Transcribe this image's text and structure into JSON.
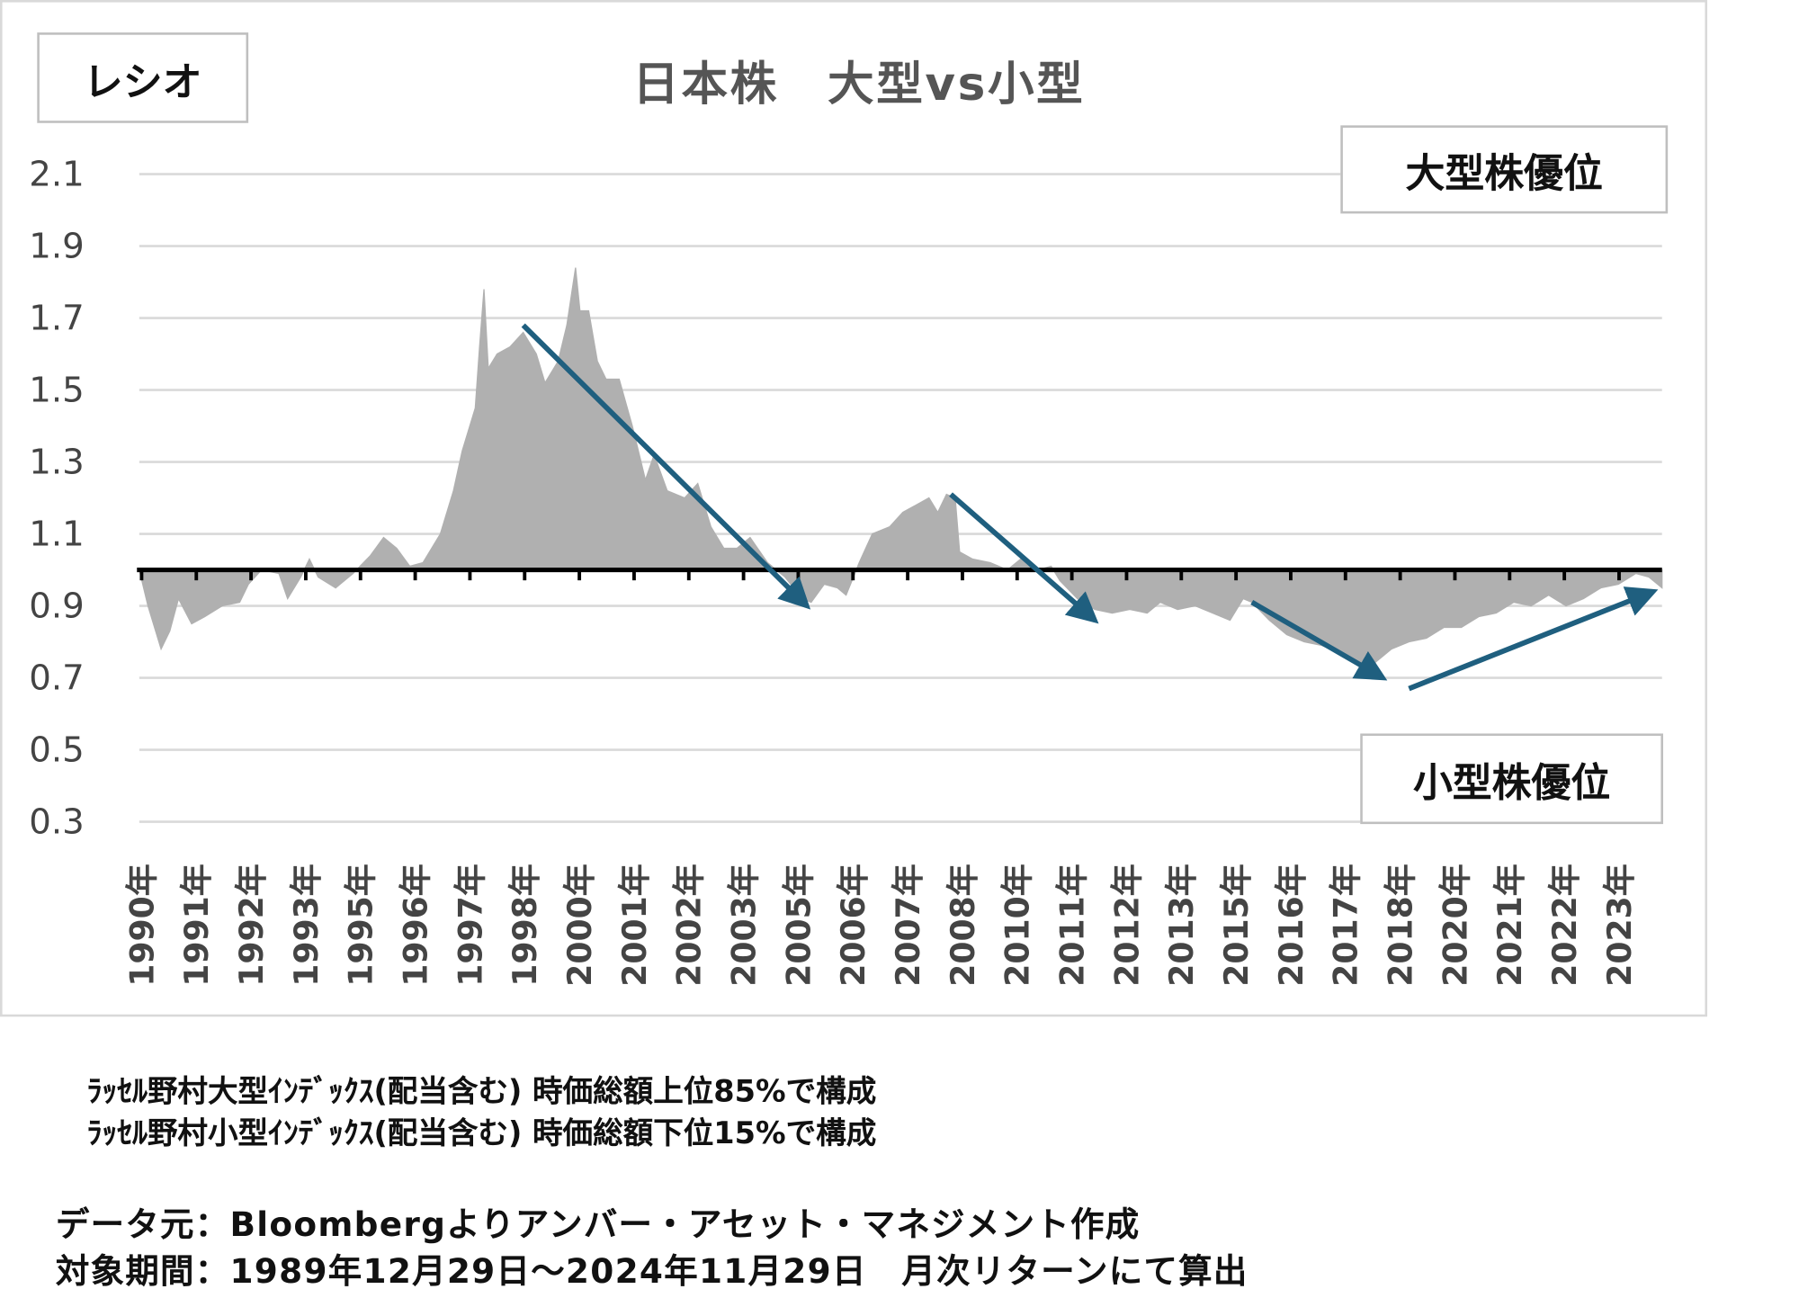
{
  "chart_data": {
    "type": "area",
    "title": "日本株　大型vs小型",
    "ylabel": "レシオ",
    "ylim": [
      0.3,
      2.1
    ],
    "yticks": [
      "2.1",
      "1.9",
      "1.7",
      "1.5",
      "1.3",
      "1.1",
      "0.9",
      "0.7",
      "0.5",
      "0.3"
    ],
    "ytick_values": [
      2.1,
      1.9,
      1.7,
      1.5,
      1.3,
      1.1,
      0.9,
      0.7,
      0.5,
      0.3
    ],
    "baseline": 1.0,
    "xlim": [
      1990.0,
      2024.9
    ],
    "xticks": [
      "1990年",
      "1991年",
      "1992年",
      "1993年",
      "1995年",
      "1996年",
      "1997年",
      "1998年",
      "2000年",
      "2001年",
      "2002年",
      "2003年",
      "2005年",
      "2006年",
      "2007年",
      "2008年",
      "2010年",
      "2011年",
      "2012年",
      "2013年",
      "2015年",
      "2016年",
      "2017年",
      "2018年",
      "2020年",
      "2021年",
      "2022年",
      "2023年"
    ],
    "grid": true,
    "fill_color": "#b0b0b0",
    "arrow_color": "#1f5f7f",
    "x": [
      1990.0,
      1990.2,
      1990.5,
      1990.7,
      1990.9,
      1991.2,
      1991.5,
      1991.9,
      1992.3,
      1992.5,
      1992.8,
      1993.2,
      1993.4,
      1993.7,
      1993.9,
      1994.1,
      1994.5,
      1994.9,
      1995.3,
      1995.6,
      1995.9,
      1996.2,
      1996.5,
      1996.9,
      1997.2,
      1997.4,
      1997.7,
      1997.8,
      1997.9,
      1998.0,
      1998.2,
      1998.5,
      1998.8,
      1999.1,
      1999.3,
      1999.6,
      1999.8,
      2000.0,
      2000.1,
      2000.3,
      2000.5,
      2000.7,
      2001.0,
      2001.3,
      2001.6,
      2001.8,
      2002.1,
      2002.5,
      2002.8,
      2003.1,
      2003.4,
      2003.7,
      2004.0,
      2004.4,
      2004.8,
      2005.2,
      2005.4,
      2005.7,
      2006.0,
      2006.2,
      2006.5,
      2006.8,
      2007.2,
      2007.5,
      2007.8,
      2008.1,
      2008.3,
      2008.5,
      2008.7,
      2008.8,
      2009.1,
      2009.5,
      2009.9,
      2010.2,
      2010.6,
      2010.9,
      2011.1,
      2011.5,
      2011.9,
      2012.3,
      2012.7,
      2013.1,
      2013.4,
      2013.8,
      2014.2,
      2014.6,
      2015.0,
      2015.3,
      2015.5,
      2015.9,
      2016.3,
      2016.7,
      2017.1,
      2017.5,
      2017.9,
      2018.2,
      2018.5,
      2018.7,
      2019.1,
      2019.5,
      2019.9,
      2020.3,
      2020.7,
      2021.1,
      2021.5,
      2021.9,
      2022.3,
      2022.7,
      2023.1,
      2023.5,
      2023.9,
      2024.3,
      2024.6,
      2024.9
    ],
    "y": [
      1.0,
      0.9,
      0.78,
      0.83,
      0.92,
      0.85,
      0.87,
      0.9,
      0.91,
      0.96,
      1.0,
      0.99,
      0.92,
      0.98,
      1.03,
      0.98,
      0.95,
      0.99,
      1.04,
      1.09,
      1.06,
      1.01,
      1.02,
      1.1,
      1.22,
      1.33,
      1.45,
      1.62,
      1.78,
      1.56,
      1.6,
      1.62,
      1.66,
      1.6,
      1.52,
      1.58,
      1.68,
      1.84,
      1.72,
      1.72,
      1.58,
      1.53,
      1.53,
      1.4,
      1.25,
      1.32,
      1.22,
      1.2,
      1.24,
      1.12,
      1.06,
      1.06,
      1.09,
      1.02,
      0.98,
      0.92,
      0.91,
      0.96,
      0.95,
      0.93,
      1.02,
      1.1,
      1.12,
      1.16,
      1.18,
      1.2,
      1.16,
      1.21,
      1.2,
      1.05,
      1.03,
      1.02,
      1.0,
      1.03,
      1.0,
      1.01,
      0.97,
      0.92,
      0.89,
      0.88,
      0.89,
      0.88,
      0.91,
      0.89,
      0.9,
      0.88,
      0.86,
      0.92,
      0.91,
      0.86,
      0.82,
      0.8,
      0.79,
      0.77,
      0.74,
      0.73,
      0.76,
      0.78,
      0.8,
      0.81,
      0.84,
      0.84,
      0.87,
      0.88,
      0.91,
      0.9,
      0.93,
      0.9,
      0.92,
      0.95,
      0.96,
      0.99,
      0.98,
      0.95
    ],
    "arrows": [
      {
        "from": [
          1998.8,
          1.68
        ],
        "to": [
          2005.3,
          0.9
        ]
      },
      {
        "from": [
          2008.6,
          1.21
        ],
        "to": [
          2011.9,
          0.86
        ]
      },
      {
        "from": [
          2015.5,
          0.91
        ],
        "to": [
          2018.5,
          0.7
        ]
      },
      {
        "from": [
          2019.1,
          0.67
        ],
        "to": [
          2024.7,
          0.94
        ]
      }
    ],
    "annotations": {
      "upper": "大型株優位",
      "lower": "小型株優位"
    }
  },
  "footnotes": [
    "ﾗｯｾﾙ野村大型ｲﾝﾃﾞｯｸｽ(配当含む) 時価総額上位85%で構成",
    "ﾗｯｾﾙ野村小型ｲﾝﾃﾞｯｸｽ(配当含む) 時価総額下位15%で構成"
  ],
  "source": "データ元：Bloombergよりアンバー・アセット・マネジメント作成",
  "period": "対象期間：1989年12月29日～2024年11月29日　月次リターンにて算出"
}
